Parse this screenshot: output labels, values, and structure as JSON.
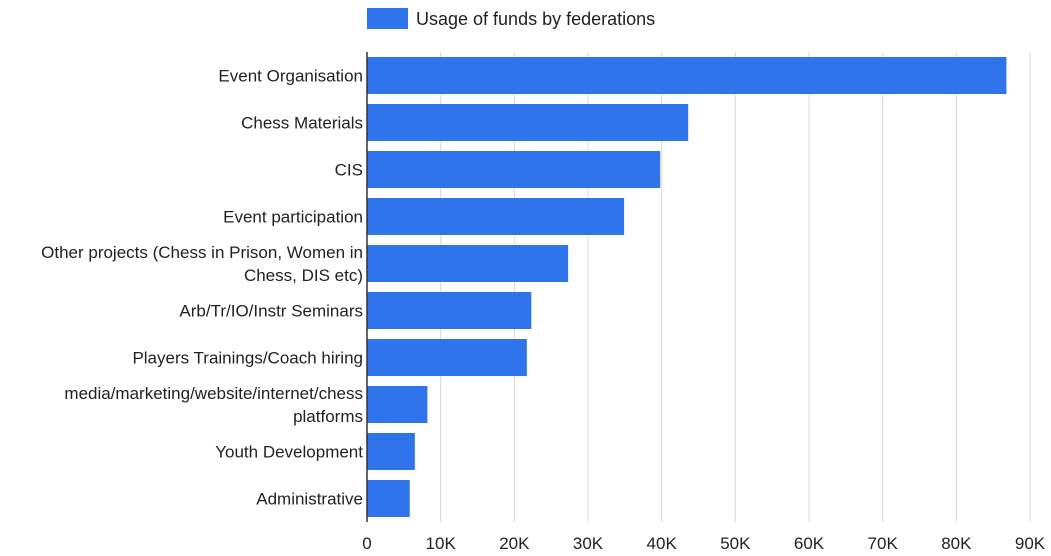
{
  "chart_data": {
    "type": "bar",
    "orientation": "horizontal",
    "series": [
      {
        "name": "Usage of funds by federations",
        "color": "#3074ec",
        "values": [
          86800,
          43600,
          39800,
          34900,
          27300,
          22300,
          21700,
          8200,
          6500,
          5800
        ]
      }
    ],
    "categories": [
      "Event Organisation",
      "Chess Materials",
      "CIS",
      "Event participation",
      "Other projects (Chess in Prison, Women in Chess, DIS etc)",
      "Arb/Tr/IO/Instr Seminars",
      "Players Trainings/Coach hiring",
      "media/marketing/website/internet/chess platforms",
      "Youth Development",
      "Administrative"
    ],
    "category_lines": [
      [
        "Event Organisation"
      ],
      [
        "Chess Materials"
      ],
      [
        "CIS"
      ],
      [
        "Event participation"
      ],
      [
        "Other projects (Chess in Prison, Women in",
        "Chess, DIS etc)"
      ],
      [
        "Arb/Tr/IO/Instr Seminars"
      ],
      [
        "Players Trainings/Coach hiring"
      ],
      [
        "media/marketing/website/internet/chess",
        "platforms"
      ],
      [
        "Youth Development"
      ],
      [
        "Administrative"
      ]
    ],
    "xlim": [
      0,
      90000
    ],
    "xticks": [
      0,
      10000,
      20000,
      30000,
      40000,
      50000,
      60000,
      70000,
      80000,
      90000
    ],
    "xtick_labels": [
      "0",
      "10K",
      "20K",
      "30K",
      "40K",
      "50K",
      "60K",
      "70K",
      "80K",
      "90K"
    ],
    "grid": true,
    "legend_position": "top"
  }
}
